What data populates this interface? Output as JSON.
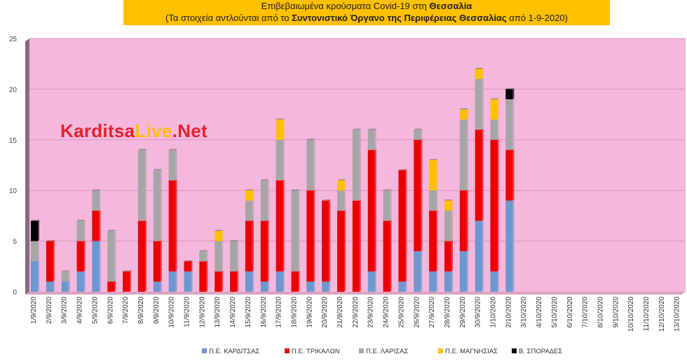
{
  "title": {
    "line1_prefix": "Επιβεβαιωμένα κρούσματα Covid-19 στη ",
    "line1_bold": "Θεσσαλία",
    "line2_prefix": "(Τα στοιχεία αντλούνται από το ",
    "line2_bold": "Συντονιστικό Όργανο της Περιφέρειας Θεσσαλίας",
    "line2_suffix": " από 1-9-2020)"
  },
  "watermark": {
    "part1": "Karditsa",
    "part2": "Live",
    "part3": ".Net"
  },
  "colors": {
    "plot_bg": "#f4b8dc",
    "wall": "#8a6a80",
    "karditsa": "#6d97cf",
    "trikala": "#ee0000",
    "larisa": "#a6a6a6",
    "magnisia": "#ffc000",
    "sporades": "#000000",
    "karditsa_text": "#e8202a",
    "live_text": "#ffc000"
  },
  "chart_data": {
    "type": "bar",
    "stacked": true,
    "ylim": [
      0,
      25
    ],
    "yticks": [
      0,
      5,
      10,
      15,
      20,
      25
    ],
    "grid": true,
    "legend_position": "bottom",
    "categories": [
      "1/9/2020",
      "2/9/2020",
      "3/9/2020",
      "4/9/2020",
      "5/9/2020",
      "6/9/2020",
      "7/9/2020",
      "8/9/2020",
      "9/9/2020",
      "10/9/2020",
      "11/9/2020",
      "12/9/2020",
      "13/9/2020",
      "14/9/2020",
      "15/9/2020",
      "16/9/2020",
      "17/9/2020",
      "18/9/2020",
      "19/9/2020",
      "20/9/2020",
      "21/9/2020",
      "22/9/2020",
      "23/9/2020",
      "24/9/2020",
      "25/9/2020",
      "26/9/2020",
      "27/9/2020",
      "28/9/2020",
      "29/9/2020",
      "30/9/2020",
      "1/10/2020",
      "2/10/2020",
      "3/10/2020",
      "4/10/2020",
      "5/10/2020",
      "6/10/2020",
      "7/10/2020",
      "8/10/2020",
      "9/10/2020",
      "10/10/2020",
      "11/10/2020",
      "12/10/2020",
      "13/10/2020"
    ],
    "series": [
      {
        "name": "Π.Ε. ΚΑΡΔΙΤΣΑΣ",
        "color": "#6d97cf",
        "values": [
          3,
          1,
          1,
          2,
          5,
          0,
          0,
          0,
          1,
          2,
          2,
          0,
          0,
          0,
          2,
          1,
          2,
          0,
          1,
          1,
          0,
          0,
          2,
          0,
          1,
          4,
          2,
          2,
          4,
          7,
          2,
          9,
          0,
          0,
          0,
          0,
          0,
          0,
          0,
          0,
          0,
          0,
          0
        ]
      },
      {
        "name": "Π.Ε. ΤΡΙΚΑΛΩΝ",
        "color": "#ee0000",
        "values": [
          0,
          4,
          0,
          3,
          3,
          1,
          2,
          7,
          4,
          9,
          1,
          3,
          2,
          2,
          5,
          6,
          9,
          2,
          9,
          8,
          8,
          9,
          12,
          7,
          11,
          11,
          6,
          3,
          6,
          9,
          13,
          5,
          0,
          0,
          0,
          0,
          0,
          0,
          0,
          0,
          0,
          0,
          0
        ]
      },
      {
        "name": "Π.Ε. ΛΑΡΙΣΑΣ",
        "color": "#a6a6a6",
        "values": [
          2,
          0,
          1,
          2,
          2,
          5,
          0,
          7,
          7,
          3,
          0,
          1,
          3,
          3,
          2,
          4,
          4,
          8,
          5,
          0,
          2,
          7,
          2,
          3,
          0,
          1,
          2,
          3,
          7,
          5,
          2,
          5,
          0,
          0,
          0,
          0,
          0,
          0,
          0,
          0,
          0,
          0,
          0
        ]
      },
      {
        "name": "Π.Ε. ΜΑΓΝΗΣΙΑΣ",
        "color": "#ffc000",
        "values": [
          0,
          0,
          0,
          0,
          0,
          0,
          0,
          0,
          0,
          0,
          0,
          0,
          1,
          0,
          1,
          0,
          2,
          0,
          0,
          0,
          1,
          0,
          0,
          0,
          0,
          0,
          3,
          1,
          1,
          1,
          2,
          0,
          0,
          0,
          0,
          0,
          0,
          0,
          0,
          0,
          0,
          0,
          0
        ]
      },
      {
        "name": "Β. ΣΠΟΡΑΔΕΣ",
        "color": "#000000",
        "values": [
          2,
          0,
          0,
          0,
          0,
          0,
          0,
          0,
          0,
          0,
          0,
          0,
          0,
          0,
          0,
          0,
          0,
          0,
          0,
          0,
          0,
          0,
          0,
          0,
          0,
          0,
          0,
          0,
          0,
          0,
          0,
          1,
          0,
          0,
          0,
          0,
          0,
          0,
          0,
          0,
          0,
          0,
          0
        ]
      }
    ]
  }
}
